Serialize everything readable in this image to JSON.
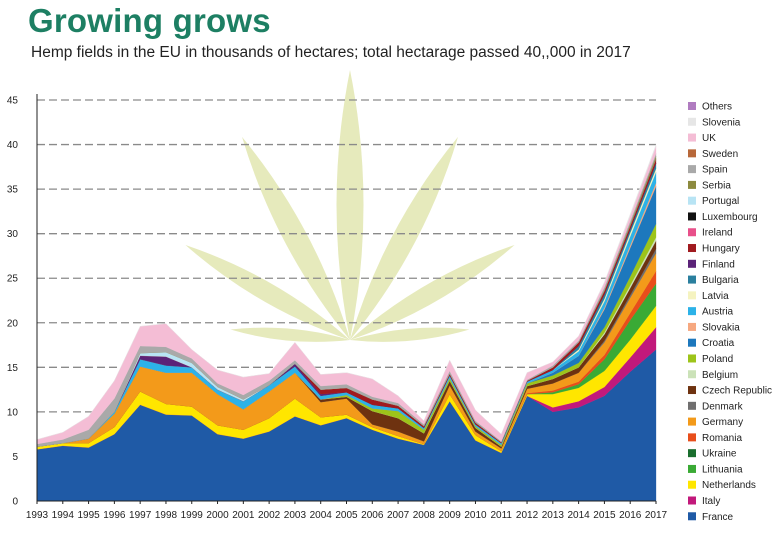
{
  "header": {
    "title": "Growing grows",
    "subtitle": "Hemp fields in the EU in thousands of hectares; total hectarage passed 40,,000 in 2017"
  },
  "chart_data": {
    "type": "area",
    "stacked": true,
    "x": [
      1993,
      1994,
      1995,
      1996,
      1997,
      1998,
      1999,
      2000,
      2001,
      2002,
      2003,
      2004,
      2005,
      2006,
      2007,
      2008,
      2009,
      2010,
      2011,
      2012,
      2013,
      2014,
      2015,
      2016,
      2017
    ],
    "ylim": [
      0,
      45
    ],
    "yticks": [
      0,
      5,
      10,
      15,
      20,
      25,
      30,
      35,
      40,
      45
    ],
    "grid": "horizontal dashed",
    "legend_position": "right",
    "series": [
      {
        "name": "France",
        "color": "#1f5aa6",
        "values": [
          5.8,
          6.2,
          6.0,
          7.5,
          10.8,
          9.7,
          9.6,
          7.5,
          7.0,
          7.8,
          9.5,
          8.5,
          9.3,
          8.0,
          7.0,
          6.3,
          11.2,
          6.8,
          5.4,
          11.8,
          10.0,
          10.5,
          11.8,
          14.5,
          17.0
        ]
      },
      {
        "name": "Italy",
        "color": "#c2197b",
        "values": [
          0,
          0,
          0,
          0,
          0,
          0,
          0,
          0,
          0,
          0,
          0,
          0,
          0,
          0,
          0,
          0,
          0,
          0,
          0,
          0,
          0.5,
          0.7,
          1.0,
          1.6,
          2.5
        ]
      },
      {
        "name": "Netherlands",
        "color": "#ffe600",
        "values": [
          0.3,
          0.3,
          0.5,
          0.8,
          1.5,
          1.2,
          1.0,
          1.0,
          1.0,
          1.5,
          2.0,
          0.9,
          0.4,
          0.3,
          0.3,
          0.1,
          0.8,
          0.6,
          0.2,
          0.2,
          1.5,
          1.5,
          1.8,
          2.0,
          2.4
        ]
      },
      {
        "name": "Lithuania",
        "color": "#3aaa35",
        "values": [
          0,
          0,
          0,
          0,
          0,
          0,
          0,
          0,
          0,
          0,
          0,
          0,
          0,
          0,
          0,
          0,
          0,
          0,
          0,
          0,
          0.2,
          0.4,
          1.3,
          2.2,
          2.5
        ]
      },
      {
        "name": "Ukraine",
        "color": "#1a6e2e",
        "values": [
          0,
          0,
          0,
          0,
          0,
          0,
          0,
          0,
          0,
          0,
          0,
          0,
          0,
          0,
          0,
          0,
          0,
          0,
          0,
          0,
          0,
          0,
          0,
          0,
          0
        ]
      },
      {
        "name": "Romania",
        "color": "#e84e1b",
        "values": [
          0,
          0,
          0,
          0,
          0,
          0,
          0,
          0,
          0,
          0,
          0,
          0,
          0,
          0,
          0,
          0,
          0,
          0,
          0,
          0.1,
          0.2,
          0.3,
          0.5,
          0.8,
          1.4
        ]
      },
      {
        "name": "Germany",
        "color": "#f39a1a",
        "values": [
          0,
          0,
          0.5,
          1.5,
          2.8,
          3.5,
          3.8,
          3.5,
          2.3,
          3.0,
          2.9,
          1.7,
          1.8,
          0.3,
          0.5,
          0.3,
          1.0,
          0.4,
          0.3,
          0.5,
          0.8,
          1.0,
          1.4,
          1.7,
          2.0
        ]
      },
      {
        "name": "Denmark",
        "color": "#706f6f",
        "values": [
          0,
          0,
          0,
          0,
          0,
          0,
          0,
          0,
          0,
          0,
          0,
          0,
          0,
          0,
          0,
          0,
          0,
          0,
          0,
          0,
          0,
          0,
          0.2,
          0.3,
          0.5
        ]
      },
      {
        "name": "Czech Republic",
        "color": "#6e3210",
        "values": [
          0,
          0,
          0,
          0,
          0,
          0,
          0,
          0,
          0,
          0,
          0,
          0.3,
          0.2,
          1.5,
          1.5,
          0.9,
          0.5,
          0.4,
          0.2,
          0.3,
          0.5,
          0.6,
          0.7,
          0.8,
          0.9
        ]
      },
      {
        "name": "Belgium",
        "color": "#cbe2b8",
        "values": [
          0,
          0,
          0,
          0,
          0,
          0,
          0,
          0,
          0,
          0,
          0,
          0,
          0,
          0,
          0,
          0,
          0,
          0,
          0,
          0,
          0,
          0,
          0.2,
          0.3,
          0.4
        ]
      },
      {
        "name": "Poland",
        "color": "#9dc41a",
        "values": [
          0,
          0,
          0,
          0,
          0,
          0,
          0,
          0,
          0,
          0,
          0,
          0,
          0.2,
          0.3,
          0.8,
          0.4,
          0.3,
          0.2,
          0.2,
          0.3,
          0.4,
          0.5,
          0.6,
          1.0,
          1.5
        ]
      },
      {
        "name": "Croatia",
        "color": "#1d78bd",
        "values": [
          0,
          0,
          0,
          0,
          0,
          0,
          0,
          0,
          0,
          0,
          0,
          0,
          0,
          0,
          0,
          0,
          0,
          0,
          0,
          0,
          0.3,
          0.8,
          2.0,
          3.2,
          4.2
        ]
      },
      {
        "name": "Slovakia",
        "color": "#f6a880",
        "values": [
          0,
          0,
          0,
          0,
          0,
          0,
          0,
          0,
          0,
          0,
          0,
          0,
          0,
          0,
          0,
          0,
          0,
          0,
          0,
          0,
          0,
          0,
          0.2,
          0.3,
          0.4
        ]
      },
      {
        "name": "Austria",
        "color": "#2cb2e8",
        "values": [
          0,
          0,
          0,
          0.2,
          0.8,
          0.8,
          0.6,
          0.5,
          0.9,
          0.7,
          0.7,
          0.4,
          0.3,
          0.4,
          0.3,
          0.2,
          0.3,
          0.2,
          0.2,
          0.2,
          0.3,
          0.5,
          0.7,
          1.0,
          1.2
        ]
      },
      {
        "name": "Latvia",
        "color": "#f5f3c0",
        "values": [
          0,
          0,
          0,
          0,
          0,
          0,
          0,
          0,
          0,
          0,
          0,
          0,
          0,
          0,
          0,
          0,
          0,
          0,
          0,
          0,
          0,
          0.2,
          0.3,
          0.4,
          0.4
        ]
      },
      {
        "name": "Bulgaria",
        "color": "#2a7f9e",
        "values": [
          0,
          0,
          0,
          0,
          0,
          0,
          0,
          0,
          0,
          0,
          0,
          0,
          0,
          0,
          0,
          0,
          0,
          0,
          0,
          0,
          0,
          0.4,
          0.5,
          0.4,
          0.6
        ]
      },
      {
        "name": "Finland",
        "color": "#5b2378",
        "values": [
          0,
          0,
          0,
          0,
          0.4,
          1.0,
          0,
          0,
          0,
          0,
          0.3,
          0.2,
          0,
          0,
          0,
          0,
          0,
          0,
          0,
          0,
          0,
          0,
          0,
          0,
          0
        ]
      },
      {
        "name": "Hungary",
        "color": "#a01a1f",
        "values": [
          0,
          0,
          0,
          0,
          0,
          0,
          0,
          0,
          0,
          0,
          0,
          0.5,
          0.5,
          0.6,
          0.3,
          0.2,
          0.2,
          0.2,
          0.1,
          0.1,
          0.3,
          0.4,
          0.4,
          0.4,
          0.5
        ]
      },
      {
        "name": "Ireland",
        "color": "#e8508a",
        "values": [
          0,
          0,
          0,
          0,
          0,
          0,
          0,
          0,
          0,
          0,
          0,
          0,
          0,
          0,
          0,
          0,
          0,
          0,
          0,
          0,
          0,
          0,
          0,
          0,
          0
        ]
      },
      {
        "name": "Luxembourg",
        "color": "#111111",
        "values": [
          0,
          0,
          0,
          0,
          0,
          0,
          0,
          0,
          0,
          0,
          0,
          0,
          0,
          0,
          0,
          0,
          0,
          0,
          0,
          0,
          0,
          0,
          0,
          0,
          0
        ]
      },
      {
        "name": "Portugal",
        "color": "#b8e4f4",
        "values": [
          0,
          0,
          0,
          0,
          0.3,
          0.5,
          0.5,
          0.3,
          0.2,
          0,
          0,
          0,
          0,
          0,
          0,
          0,
          0,
          0,
          0,
          0,
          0,
          0,
          0,
          0,
          0
        ]
      },
      {
        "name": "Serbia",
        "color": "#8c8a3e",
        "values": [
          0,
          0,
          0,
          0,
          0,
          0,
          0,
          0,
          0,
          0,
          0,
          0,
          0,
          0,
          0,
          0,
          0,
          0,
          0,
          0,
          0,
          0,
          0.1,
          0.2,
          0.3
        ]
      },
      {
        "name": "Spain",
        "color": "#a9a9a9",
        "values": [
          0.3,
          0.4,
          1.0,
          1.5,
          0.8,
          0.6,
          0.5,
          0.4,
          0.5,
          0.5,
          0.4,
          0.4,
          0.4,
          0.3,
          0.3,
          0.2,
          0.3,
          0.2,
          0.1,
          0.1,
          0.2,
          0.2,
          0.3,
          0.3,
          0.3
        ]
      },
      {
        "name": "Sweden",
        "color": "#b8683a",
        "values": [
          0,
          0,
          0,
          0,
          0,
          0,
          0,
          0,
          0,
          0,
          0,
          0,
          0,
          0,
          0,
          0,
          0,
          0,
          0,
          0,
          0,
          0,
          0,
          0,
          0
        ]
      },
      {
        "name": "UK",
        "color": "#f4bdd5",
        "values": [
          0.5,
          0.8,
          1.5,
          2.0,
          2.2,
          2.6,
          1.0,
          1.5,
          2.0,
          0.8,
          2.0,
          1.3,
          1.3,
          2.0,
          0.8,
          0.4,
          1.2,
          1.2,
          0.8,
          0.8,
          0.4,
          0.5,
          0.5,
          0.6,
          0.8
        ]
      },
      {
        "name": "Slovenia",
        "color": "#e6e6e6",
        "values": [
          0,
          0,
          0,
          0,
          0,
          0,
          0,
          0,
          0,
          0,
          0,
          0,
          0,
          0,
          0,
          0,
          0,
          0,
          0,
          0,
          0,
          0,
          0.1,
          0.2,
          0.2
        ]
      },
      {
        "name": "Others",
        "color": "#b07cc0",
        "values": [
          0,
          0,
          0,
          0,
          0,
          0,
          0,
          0,
          0,
          0,
          0,
          0,
          0,
          0,
          0,
          0,
          0,
          0,
          0,
          0,
          0,
          0,
          0,
          0,
          0
        ]
      }
    ]
  }
}
